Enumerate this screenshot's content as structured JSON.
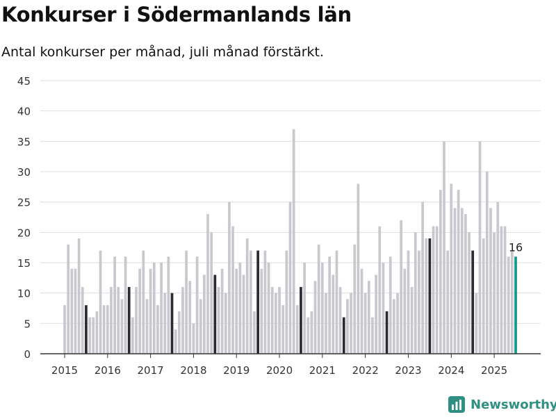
{
  "header": {
    "title": "Konkurser i Södermanlands län",
    "subtitle": "Antal konkurser per månad, juli månad förstärkt."
  },
  "brand": {
    "name": "Newsworthy",
    "icon": "bar-chart-logo-icon"
  },
  "colors": {
    "regular": "#c8c8cf",
    "july": "#2b2b33",
    "latest": "#119a8a",
    "grid": "#dedede",
    "axis": "#333333"
  },
  "chart_data": {
    "type": "bar",
    "start": "2015-01",
    "highlight_month": "juli",
    "ylim": [
      0,
      45
    ],
    "yticks": [
      0,
      5,
      10,
      15,
      20,
      25,
      30,
      35,
      40,
      45
    ],
    "xticks": [
      "2015",
      "2016",
      "2017",
      "2018",
      "2019",
      "2020",
      "2021",
      "2022",
      "2023",
      "2024",
      "2025"
    ],
    "latest_label": "16",
    "values": [
      8,
      18,
      14,
      14,
      19,
      11,
      8,
      6,
      6,
      7,
      17,
      8,
      8,
      11,
      16,
      11,
      9,
      16,
      11,
      6,
      11,
      14,
      17,
      9,
      14,
      15,
      8,
      15,
      10,
      16,
      10,
      4,
      7,
      11,
      17,
      12,
      5,
      16,
      9,
      13,
      23,
      20,
      13,
      11,
      14,
      10,
      25,
      21,
      14,
      15,
      13,
      19,
      17,
      7,
      17,
      14,
      17,
      15,
      11,
      10,
      11,
      8,
      17,
      25,
      37,
      8,
      11,
      15,
      6,
      7,
      12,
      18,
      15,
      10,
      16,
      13,
      17,
      11,
      6,
      9,
      10,
      18,
      28,
      14,
      10,
      12,
      6,
      13,
      21,
      15,
      7,
      16,
      9,
      10,
      22,
      14,
      17,
      11,
      20,
      17,
      25,
      19,
      19,
      21,
      21,
      27,
      35,
      17,
      28,
      24,
      27,
      24,
      23,
      20,
      17,
      10,
      35,
      19,
      30,
      24,
      20,
      25,
      21,
      21,
      16,
      17,
      16
    ]
  }
}
